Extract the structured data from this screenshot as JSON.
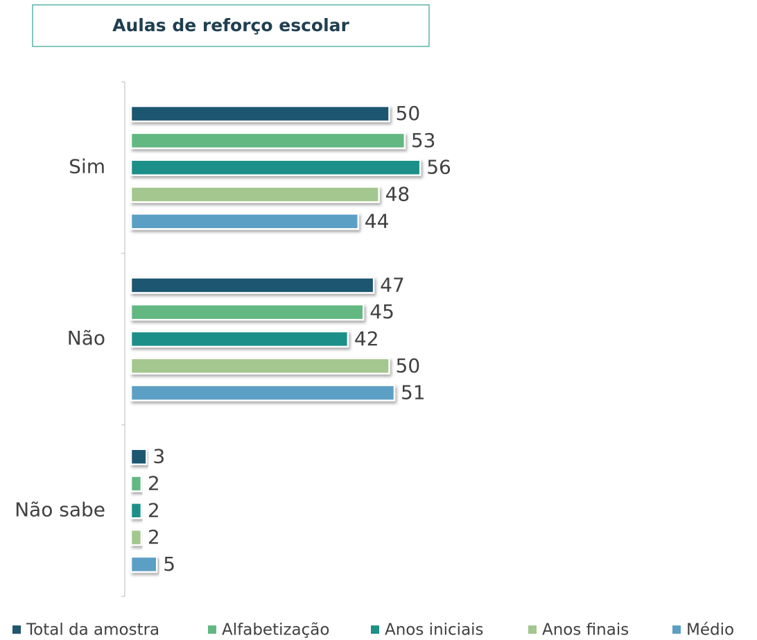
{
  "chart_data": {
    "type": "bar",
    "orientation": "horizontal",
    "title": "Aulas de reforço escolar",
    "categories": [
      "Sim",
      "Não",
      "Não sabe"
    ],
    "series": [
      {
        "name": "Total da amostra",
        "color": "#1f5670",
        "values": [
          50,
          47,
          3
        ]
      },
      {
        "name": "Alfabetização",
        "color": "#63b882",
        "values": [
          53,
          45,
          2
        ]
      },
      {
        "name": "Anos iniciais",
        "color": "#1f9088",
        "values": [
          56,
          42,
          2
        ]
      },
      {
        "name": "Anos finais",
        "color": "#a3c78e",
        "values": [
          48,
          50,
          2
        ]
      },
      {
        "name": "Médio",
        "color": "#5b9fc4",
        "values": [
          44,
          51,
          5
        ]
      }
    ],
    "legend": "bottom"
  }
}
